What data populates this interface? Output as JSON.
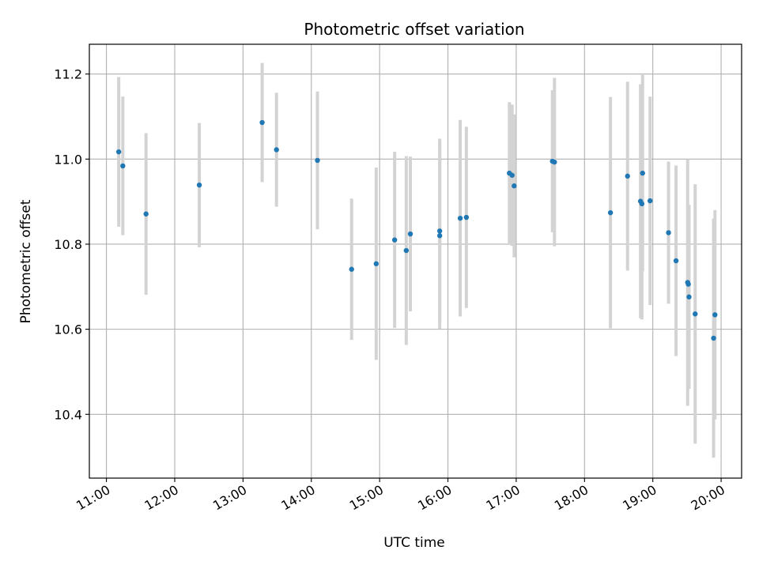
{
  "chart_data": {
    "type": "scatter",
    "title": "Photometric offset variation",
    "xlabel": "UTC time",
    "ylabel": "Photometric offset",
    "x_unit": "hour of day (UTC)",
    "xlim": [
      10.75,
      20.3
    ],
    "ylim": [
      10.25,
      11.27
    ],
    "x_ticks": [
      11,
      12,
      13,
      14,
      15,
      16,
      17,
      18,
      19,
      20
    ],
    "x_tick_labels": [
      "11:00",
      "12:00",
      "13:00",
      "14:00",
      "15:00",
      "16:00",
      "17:00",
      "18:00",
      "19:00",
      "20:00"
    ],
    "y_ticks": [
      10.4,
      10.6,
      10.8,
      11.0,
      11.2
    ],
    "y_tick_labels": [
      "10.4",
      "10.6",
      "10.8",
      "11.0",
      "11.2"
    ],
    "grid": true,
    "point_color": "#1f77b4",
    "errorbar_color": "#d3d3d3",
    "points": [
      {
        "x": 11.18,
        "y": 11.017,
        "err": 0.176
      },
      {
        "x": 11.24,
        "y": 10.984,
        "err": 0.163
      },
      {
        "x": 11.58,
        "y": 10.871,
        "err": 0.19
      },
      {
        "x": 12.36,
        "y": 10.939,
        "err": 0.146
      },
      {
        "x": 13.28,
        "y": 11.086,
        "err": 0.14
      },
      {
        "x": 13.49,
        "y": 11.022,
        "err": 0.134
      },
      {
        "x": 14.09,
        "y": 10.997,
        "err": 0.162
      },
      {
        "x": 14.59,
        "y": 10.741,
        "err": 0.166
      },
      {
        "x": 14.95,
        "y": 10.754,
        "err": 0.226
      },
      {
        "x": 15.22,
        "y": 10.81,
        "err": 0.207
      },
      {
        "x": 15.39,
        "y": 10.785,
        "err": 0.222
      },
      {
        "x": 15.45,
        "y": 10.824,
        "err": 0.182
      },
      {
        "x": 15.88,
        "y": 10.831,
        "err": 0.217
      },
      {
        "x": 15.88,
        "y": 10.82,
        "err": 0.219
      },
      {
        "x": 16.18,
        "y": 10.861,
        "err": 0.231
      },
      {
        "x": 16.27,
        "y": 10.863,
        "err": 0.213
      },
      {
        "x": 16.9,
        "y": 10.967,
        "err": 0.167
      },
      {
        "x": 16.94,
        "y": 10.962,
        "err": 0.166
      },
      {
        "x": 16.97,
        "y": 10.937,
        "err": 0.168
      },
      {
        "x": 17.53,
        "y": 10.995,
        "err": 0.167
      },
      {
        "x": 17.56,
        "y": 10.993,
        "err": 0.198
      },
      {
        "x": 18.38,
        "y": 10.874,
        "err": 0.272
      },
      {
        "x": 18.63,
        "y": 10.96,
        "err": 0.222
      },
      {
        "x": 18.82,
        "y": 10.901,
        "err": 0.275
      },
      {
        "x": 18.84,
        "y": 10.895,
        "err": 0.272
      },
      {
        "x": 18.85,
        "y": 10.967,
        "err": 0.231
      },
      {
        "x": 18.96,
        "y": 10.902,
        "err": 0.245
      },
      {
        "x": 19.23,
        "y": 10.827,
        "err": 0.167
      },
      {
        "x": 19.34,
        "y": 10.761,
        "err": 0.224
      },
      {
        "x": 19.51,
        "y": 10.71,
        "err": 0.29
      },
      {
        "x": 19.52,
        "y": 10.706,
        "err": 0.187
      },
      {
        "x": 19.53,
        "y": 10.676,
        "err": 0.216
      },
      {
        "x": 19.62,
        "y": 10.636,
        "err": 0.305
      },
      {
        "x": 19.89,
        "y": 10.579,
        "err": 0.281
      },
      {
        "x": 19.91,
        "y": 10.634,
        "err": 0.246
      }
    ]
  }
}
